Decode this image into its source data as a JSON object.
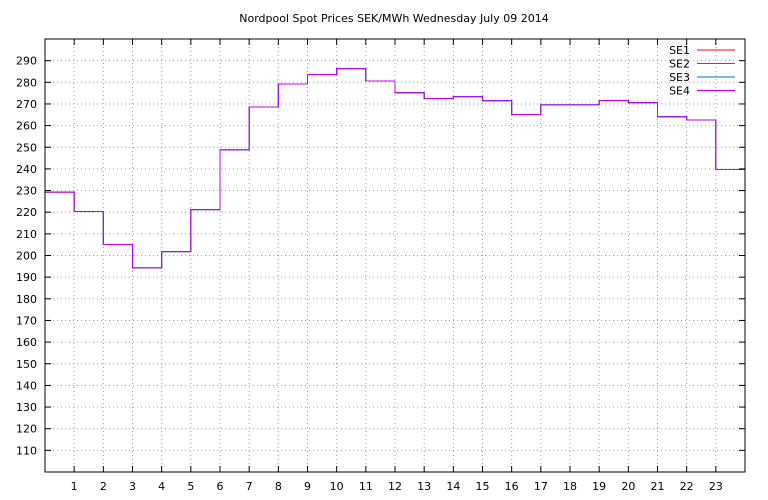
{
  "chart_data": {
    "type": "line",
    "title": "Nordpool Spot Prices SEK/MWh Wednesday July 09 2014",
    "xlabel": "",
    "ylabel": "",
    "xlim": [
      0,
      24
    ],
    "ylim": [
      100,
      300
    ],
    "grid": true,
    "legend_position": "top-right",
    "step": true,
    "x_ticks": [
      "1",
      "2",
      "3",
      "4",
      "5",
      "6",
      "7",
      "8",
      "9",
      "10",
      "11",
      "12",
      "13",
      "14",
      "15",
      "16",
      "17",
      "18",
      "19",
      "20",
      "21",
      "22",
      "23"
    ],
    "y_ticks": [
      "110",
      "120",
      "130",
      "140",
      "150",
      "160",
      "170",
      "180",
      "190",
      "200",
      "210",
      "220",
      "230",
      "240",
      "250",
      "260",
      "270",
      "280",
      "290"
    ],
    "x": [
      0,
      1,
      2,
      3,
      4,
      5,
      6,
      7,
      8,
      9,
      10,
      11,
      12,
      13,
      14,
      15,
      16,
      17,
      18,
      19,
      20,
      21,
      22,
      23
    ],
    "series": [
      {
        "name": "SE1",
        "color": "#ff0000",
        "values": [
          229.3,
          220.3,
          205.1,
          194.3,
          201.8,
          221.2,
          248.8,
          268.6,
          279.2,
          283.6,
          286.3,
          280.6,
          275.2,
          272.5,
          273.4,
          271.5,
          265.1,
          269.6,
          269.6,
          271.6,
          270.6,
          264.1,
          262.6,
          239.7
        ]
      },
      {
        "name": "SE2",
        "color": "#00a000",
        "values": [
          229.3,
          220.3,
          205.1,
          194.3,
          201.8,
          221.2,
          248.8,
          268.6,
          279.2,
          283.6,
          286.3,
          280.6,
          275.2,
          272.5,
          273.4,
          271.5,
          265.1,
          269.6,
          269.6,
          271.6,
          270.6,
          264.1,
          262.6,
          239.7
        ]
      },
      {
        "name": "SE3",
        "color": "#0066ff",
        "values": [
          229.3,
          220.3,
          205.1,
          194.3,
          201.8,
          221.2,
          248.8,
          268.6,
          279.2,
          283.6,
          286.3,
          280.6,
          275.2,
          272.5,
          273.4,
          271.5,
          265.1,
          269.6,
          269.6,
          271.6,
          270.6,
          264.1,
          262.6,
          239.7
        ]
      },
      {
        "name": "SE4",
        "color": "#c000ff",
        "values": [
          229.3,
          220.3,
          205.1,
          194.3,
          201.8,
          221.2,
          248.8,
          268.6,
          279.2,
          283.6,
          286.3,
          280.6,
          275.2,
          272.5,
          273.4,
          271.5,
          265.1,
          269.6,
          269.6,
          271.6,
          270.6,
          264.1,
          262.6,
          239.7
        ]
      }
    ]
  }
}
